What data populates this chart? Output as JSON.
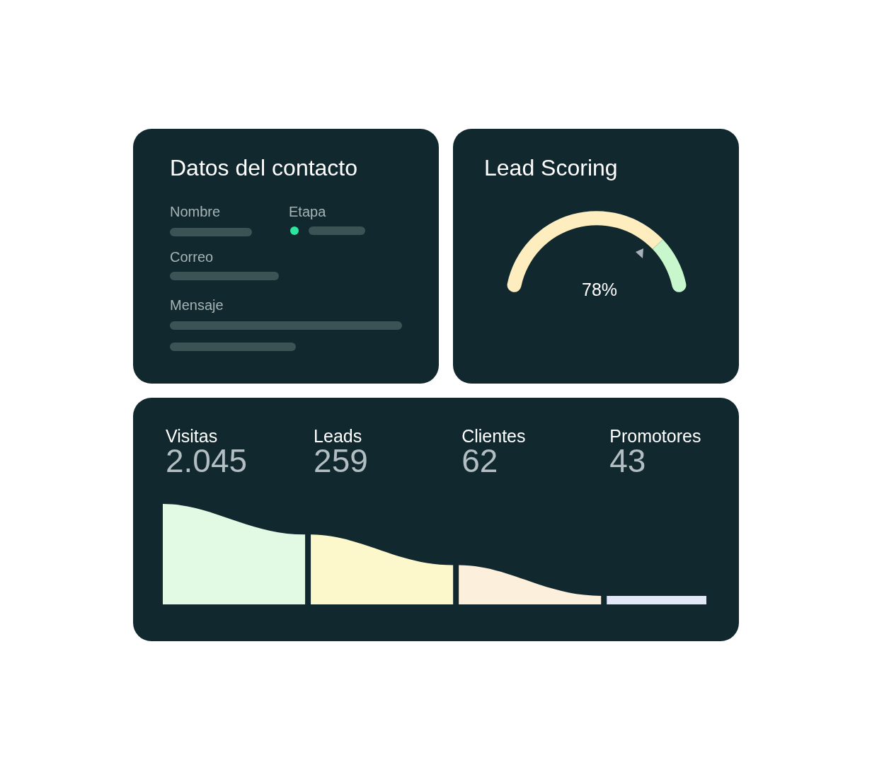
{
  "chart_data": [
    {
      "type": "other",
      "title": "Datos del contacto",
      "annotations": [
        "Nombre",
        "Etapa",
        "Correo",
        "Mensaje"
      ]
    },
    {
      "type": "donut",
      "title": "Lead Scoring",
      "categories": [
        null,
        null
      ],
      "values": [
        78,
        22
      ],
      "colors": [
        "#fdedbf",
        "#c9f7cd"
      ],
      "value_labels": [
        "78%",
        null
      ]
    },
    {
      "type": "other",
      "categories": [
        "Visitas",
        "Leads",
        "Clientes",
        "Promotores"
      ],
      "value_labels": [
        "2.045",
        "259",
        "62",
        "43"
      ]
    }
  ]
}
